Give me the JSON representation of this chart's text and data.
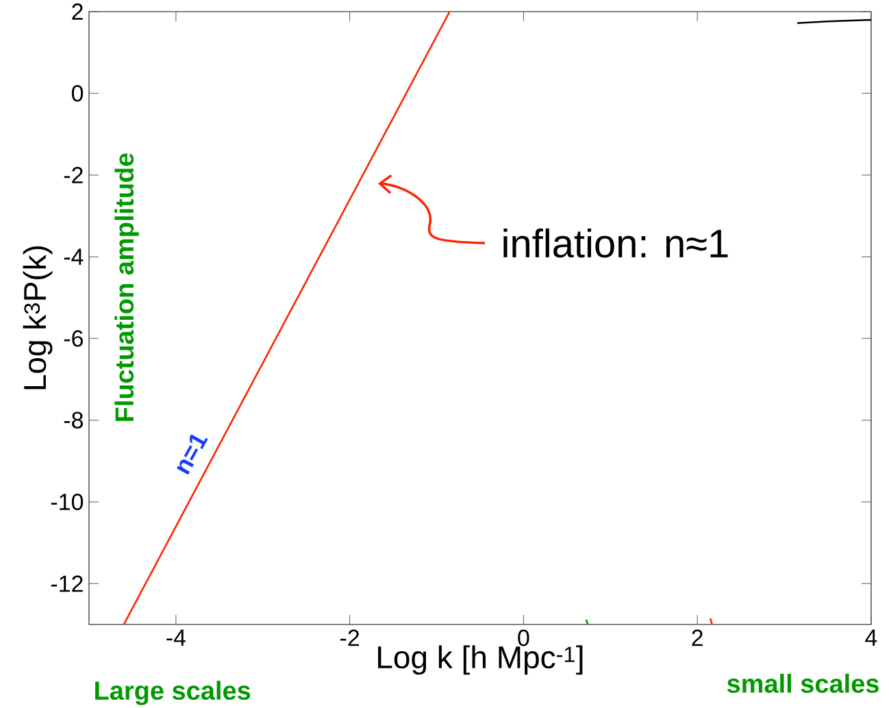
{
  "chart_data": {
    "type": "line",
    "xlabel": "Log k [h Mpc$^{-1}$]",
    "ylabel": "Log k$^{3}$P(k)",
    "xlim": [
      -5,
      4
    ],
    "ylim": [
      -13,
      2
    ],
    "xticks": [
      -4,
      -2,
      0,
      2,
      4
    ],
    "yticks": [
      -12,
      -10,
      -8,
      -6,
      -4,
      -2,
      0,
      2
    ],
    "series": [
      {
        "color": "#ff2200",
        "x": [
          -4.6,
          -0.85
        ],
        "values": [
          -13,
          2
        ]
      },
      {
        "color": "#000000",
        "x": [
          3.15,
          3.5,
          4
        ],
        "values": [
          1.72,
          1.76,
          1.8
        ]
      },
      {
        "color": "#009900",
        "x": [
          0.72,
          0.74
        ],
        "values": [
          -12.88,
          -13
        ]
      },
      {
        "color": "#ff2200",
        "x": [
          2.15,
          2.17
        ],
        "values": [
          -12.85,
          -13
        ]
      }
    ],
    "annotations": [
      "inflation: n≈1",
      "n=1",
      "Fluctuation amplitude",
      "Large scales",
      "small scales"
    ],
    "line_style": "solid"
  }
}
